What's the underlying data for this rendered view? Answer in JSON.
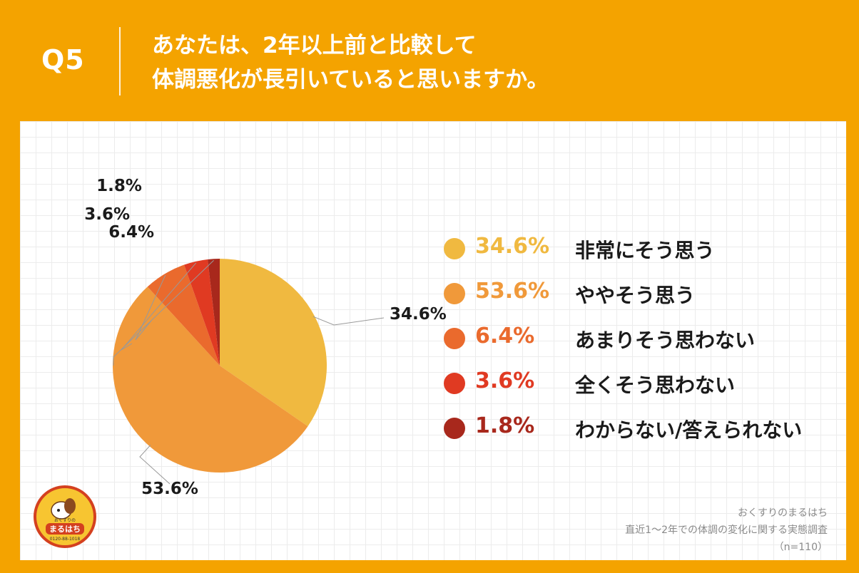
{
  "header": {
    "question_number": "Q5",
    "title_line1": "あなたは、2年以上前と比較して",
    "title_line2": "体調悪化が長引いていると思いますか。"
  },
  "chart_data": {
    "type": "pie",
    "title": "あなたは、2年以上前と比較して体調悪化が長引いていると思いますか。",
    "categories": [
      "非常にそう思う",
      "ややそう思う",
      "あまりそう思わない",
      "全くそう思わない",
      "わからない/答えられない"
    ],
    "values": [
      34.6,
      53.6,
      6.4,
      3.6,
      1.8
    ],
    "data_labels": [
      "34.6%",
      "53.6%",
      "6.4%",
      "3.6%",
      "1.8%"
    ],
    "colors": [
      "#f0b940",
      "#f0993a",
      "#ea6a2d",
      "#e03a22",
      "#a8281c"
    ],
    "start": "top",
    "direction": "clockwise",
    "legend_placement": "right"
  },
  "legend": {
    "items": [
      {
        "pct": "34.6%",
        "label": "非常にそう思う",
        "color": "#f0b940",
        "text_color": "#f0b940"
      },
      {
        "pct": "53.6%",
        "label": "ややそう思う",
        "color": "#f0993a",
        "text_color": "#f0993a"
      },
      {
        "pct": "6.4%",
        "label": "あまりそう思わない",
        "color": "#ea6a2d",
        "text_color": "#ea6a2d"
      },
      {
        "pct": "3.6%",
        "label": "全くそう思わない",
        "color": "#e03a22",
        "text_color": "#e03a22"
      },
      {
        "pct": "1.8%",
        "label": "わからない/答えられない",
        "color": "#a8281c",
        "text_color": "#a8281c"
      }
    ]
  },
  "footer": {
    "brand": "おくすりのまるはち",
    "survey": "直近1～2年での体調の変化に関する実態調査",
    "sample": "（n=110）"
  },
  "logo": {
    "small_text": "おくすりの",
    "brand_text": "まるはち",
    "phone": "0120-88-1018",
    "icon": "dog-mascot-icon"
  }
}
